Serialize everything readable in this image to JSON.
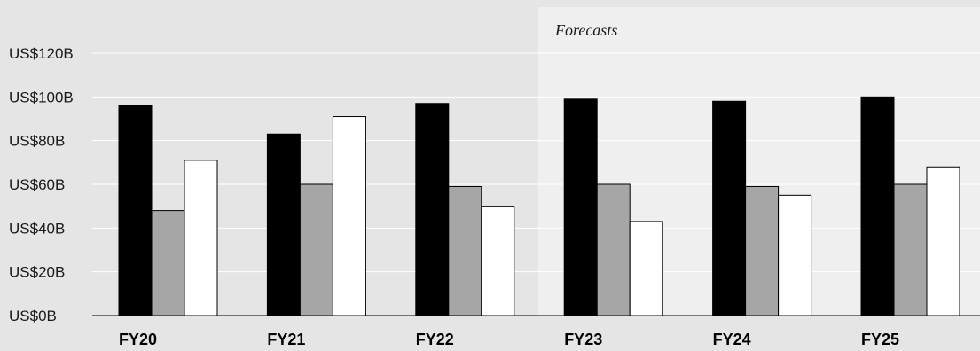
{
  "chart_data": {
    "type": "bar",
    "categories": [
      "FY20",
      "FY21",
      "FY22",
      "FY23",
      "FY24",
      "FY25"
    ],
    "series": [
      {
        "color": "#000000",
        "values": [
          96,
          83,
          97,
          99,
          98,
          100
        ]
      },
      {
        "color": "#a6a6a6",
        "values": [
          48,
          60,
          59,
          60,
          59,
          60
        ]
      },
      {
        "color": "#ffffff",
        "values": [
          71,
          91,
          50,
          43,
          55,
          68
        ]
      }
    ],
    "yticks": [
      "US$0B",
      "US$20B",
      "US$40B",
      "US$60B",
      "US$80B",
      "US$100B",
      "US$120B"
    ],
    "ylim": [
      0,
      120
    ],
    "grid": true,
    "forecast_label": "Forecasts",
    "forecast_start": "FY23"
  }
}
